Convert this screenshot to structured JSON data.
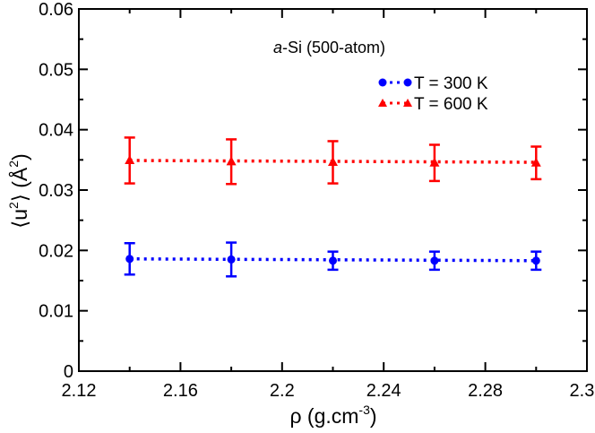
{
  "chart_data": {
    "type": "scatter",
    "title": "",
    "annotation": {
      "italic": "a",
      "rest": "-Si (500-atom)"
    },
    "xlabel": {
      "symbol": "ρ",
      "text": " (g.cm",
      "sup": "-3",
      "close": ")"
    },
    "ylabel": {
      "open": "⟨u",
      "sup1": "2",
      "mid": "⟩ (Å",
      "sup2": "2",
      "close": ")"
    },
    "xlim": [
      2.12,
      2.32
    ],
    "ylim": [
      0,
      0.06
    ],
    "xticks": [
      "2.12",
      "2.16",
      "2.2",
      "2.24",
      "2.28",
      "2.32"
    ],
    "yticks": [
      "0",
      "0.01",
      "0.02",
      "0.03",
      "0.04",
      "0.05",
      "0.06"
    ],
    "x": [
      2.14,
      2.18,
      2.22,
      2.26,
      2.3
    ],
    "series": [
      {
        "name": "T = 300 K",
        "color": "#0000ff",
        "marker": "circle",
        "values": [
          0.0186,
          0.0185,
          0.0183,
          0.0183,
          0.0183
        ],
        "errors": [
          0.0026,
          0.0028,
          0.0015,
          0.0015,
          0.0015
        ],
        "fit": [
          0.0186,
          0.0183
        ]
      },
      {
        "name": "T = 600 K",
        "color": "#ff0000",
        "marker": "triangle",
        "values": [
          0.0349,
          0.0347,
          0.0346,
          0.0345,
          0.0345
        ],
        "errors": [
          0.0038,
          0.0037,
          0.0035,
          0.003,
          0.0027
        ],
        "fit": [
          0.0349,
          0.0346
        ]
      }
    ]
  }
}
